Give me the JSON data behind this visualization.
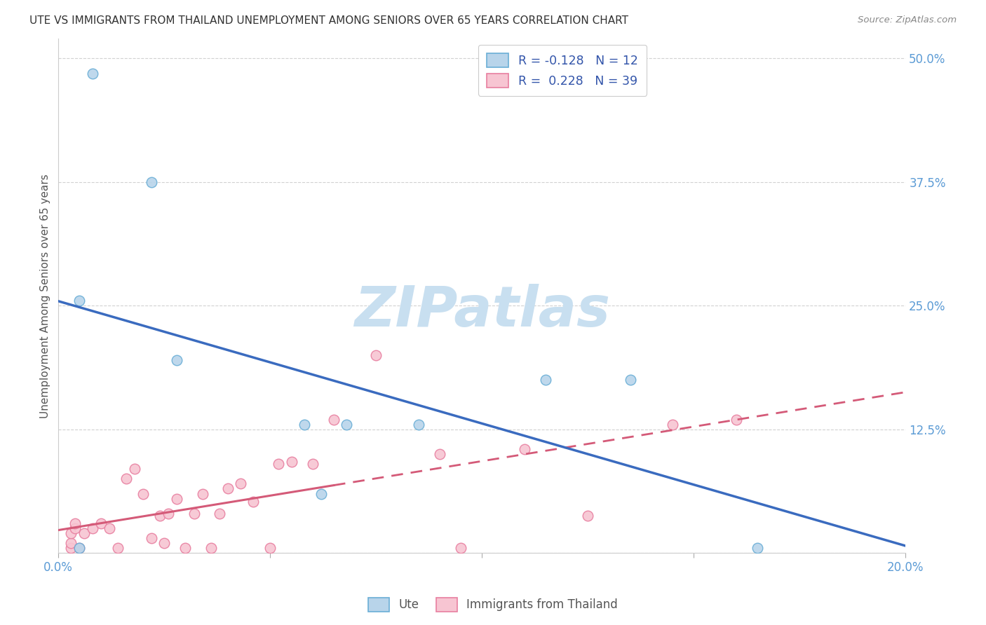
{
  "title": "UTE VS IMMIGRANTS FROM THAILAND UNEMPLOYMENT AMONG SENIORS OVER 65 YEARS CORRELATION CHART",
  "source": "Source: ZipAtlas.com",
  "ylabel": "Unemployment Among Seniors over 65 years",
  "xlim": [
    0.0,
    0.2
  ],
  "ylim": [
    0.0,
    0.52
  ],
  "xticks": [
    0.0,
    0.05,
    0.1,
    0.15,
    0.2
  ],
  "xticklabels": [
    "0.0%",
    "",
    "",
    "",
    "20.0%"
  ],
  "yticks": [
    0.0,
    0.125,
    0.25,
    0.375,
    0.5
  ],
  "yticklabels": [
    "",
    "12.5%",
    "25.0%",
    "37.5%",
    "50.0%"
  ],
  "ute_color": "#b8d4ea",
  "ute_edge_color": "#6aaed6",
  "thailand_color": "#f7c5d2",
  "thailand_edge_color": "#e87fa0",
  "ute_line_color": "#3a6bbf",
  "thailand_line_color": "#d45a78",
  "watermark_text": "ZIPatlas",
  "watermark_color": "#c8dff0",
  "legend_label1": "R = -0.128   N = 12",
  "legend_label2": "R =  0.228   N = 39",
  "bottom_label1": "Ute",
  "bottom_label2": "Immigrants from Thailand",
  "ute_x": [
    0.008,
    0.005,
    0.022,
    0.005,
    0.028,
    0.058,
    0.062,
    0.068,
    0.085,
    0.135,
    0.165,
    0.115
  ],
  "ute_y": [
    0.485,
    0.255,
    0.375,
    0.005,
    0.195,
    0.13,
    0.06,
    0.13,
    0.13,
    0.175,
    0.005,
    0.175
  ],
  "thailand_x": [
    0.003,
    0.003,
    0.003,
    0.004,
    0.004,
    0.005,
    0.006,
    0.008,
    0.01,
    0.012,
    0.014,
    0.016,
    0.018,
    0.02,
    0.022,
    0.024,
    0.025,
    0.026,
    0.028,
    0.03,
    0.032,
    0.034,
    0.036,
    0.038,
    0.04,
    0.043,
    0.046,
    0.05,
    0.052,
    0.055,
    0.06,
    0.065,
    0.075,
    0.09,
    0.095,
    0.11,
    0.125,
    0.145,
    0.16
  ],
  "thailand_y": [
    0.005,
    0.01,
    0.02,
    0.025,
    0.03,
    0.005,
    0.02,
    0.025,
    0.03,
    0.025,
    0.005,
    0.075,
    0.085,
    0.06,
    0.015,
    0.038,
    0.01,
    0.04,
    0.055,
    0.005,
    0.04,
    0.06,
    0.005,
    0.04,
    0.065,
    0.07,
    0.052,
    0.005,
    0.09,
    0.092,
    0.09,
    0.135,
    0.2,
    0.1,
    0.005,
    0.105,
    0.038,
    0.13,
    0.135
  ],
  "marker_size": 110
}
